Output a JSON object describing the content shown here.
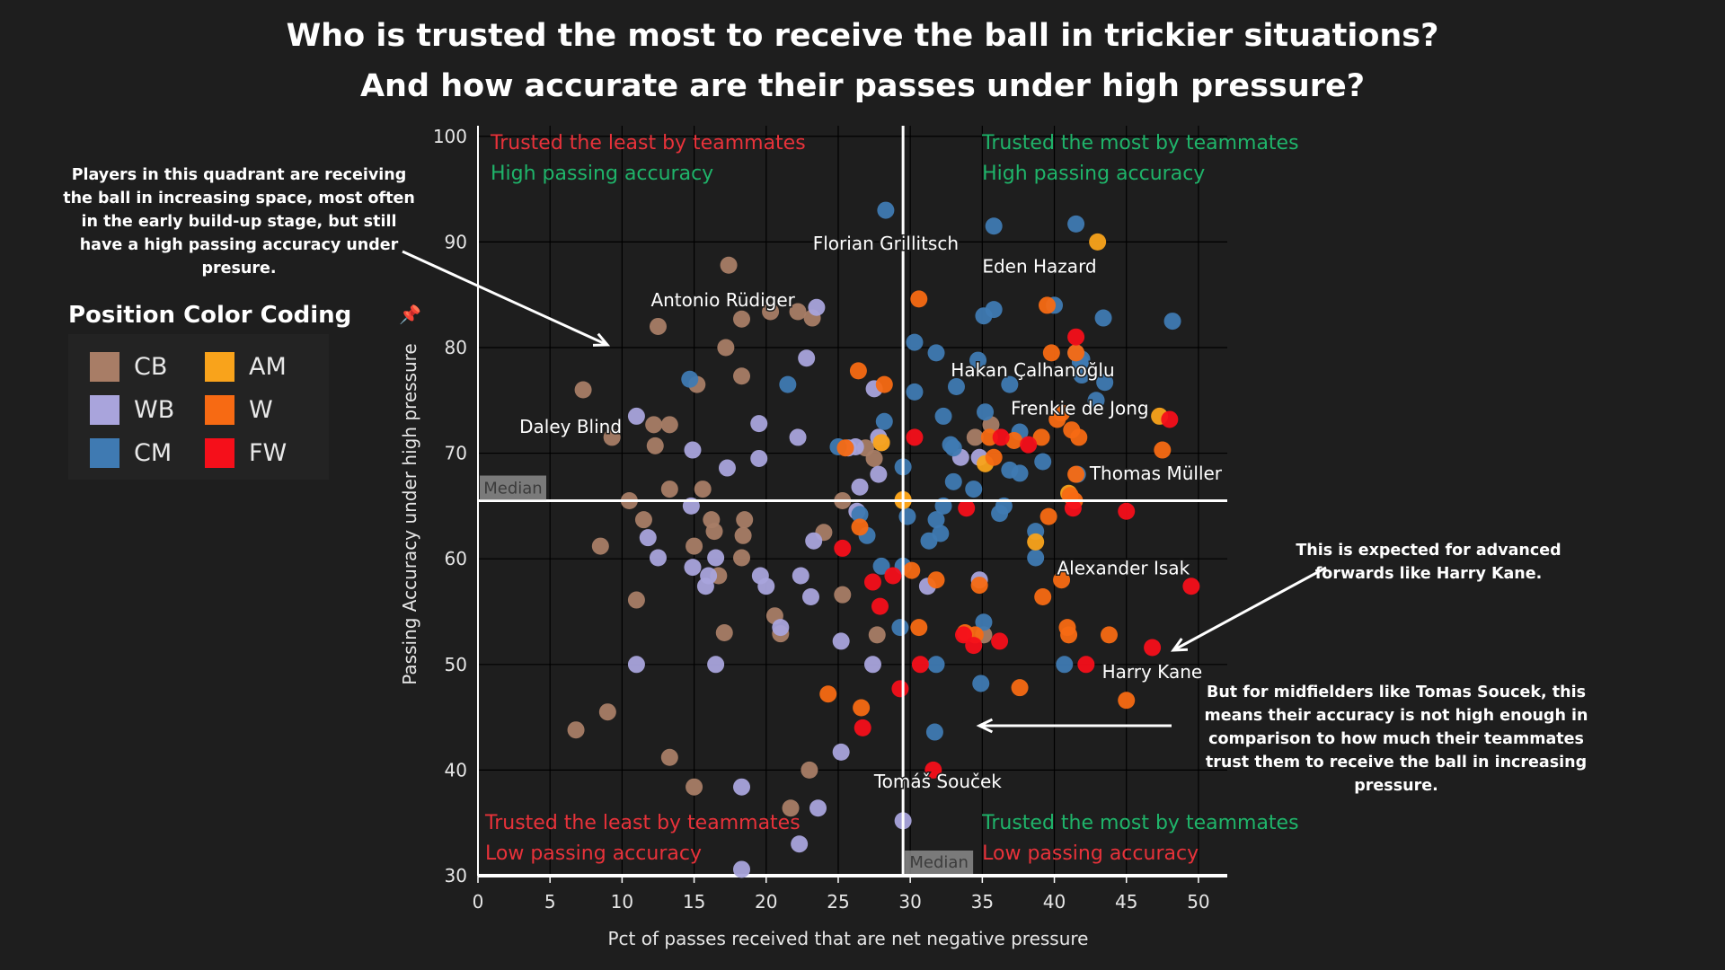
{
  "title": {
    "line1": "Who is trusted the most to receive the ball in trickier situations?",
    "line2": "And how accurate are their passes under high pressure?"
  },
  "annotations": {
    "top_left": "Players in this quadrant are receiving the ball in increasing space, most often in the early build-up stage, but still have a high passing accuracy under presure.",
    "right_forwards": "This is expected for advanced forwards like Harry Kane.",
    "right_midfielders": "But for midfielders like Tomas Soucek, this means their accuracy is not high enough in comparison to how much their teammates trust them to receive the ball in increasing pressure."
  },
  "legend": {
    "title": "Position Color Coding",
    "items": [
      {
        "label": "CB",
        "color": "#a87d66"
      },
      {
        "label": "AM",
        "color": "#f9a31b"
      },
      {
        "label": "WB",
        "color": "#a9a4dc"
      },
      {
        "label": "W",
        "color": "#f76a13"
      },
      {
        "label": "CM",
        "color": "#3f7ab2"
      },
      {
        "label": "FW",
        "color": "#f50f1a"
      }
    ]
  },
  "chart_data": {
    "type": "scatter",
    "xlabel": "Pct of passes received that are net negative pressure",
    "ylabel": "Passing Accuracy under high pressure",
    "xlim": [
      0,
      52
    ],
    "ylim": [
      30,
      101
    ],
    "xticks": [
      0,
      5,
      10,
      15,
      20,
      25,
      30,
      35,
      40,
      45,
      50
    ],
    "yticks": [
      30,
      40,
      50,
      60,
      70,
      80,
      90,
      100
    ],
    "grid": true,
    "median_x": 29.5,
    "median_y": 65.5,
    "median_label": "Median",
    "quadrant_labels": [
      {
        "line1": "Trusted the least by teammates",
        "line2": "High passing accuracy",
        "c1": "#e8323a",
        "c2": "#1fb46a",
        "corner": "top-left"
      },
      {
        "line1": "Trusted the most by teammates",
        "line2": "High passing accuracy",
        "c1": "#1fb46a",
        "c2": "#1fb46a",
        "corner": "top-right"
      },
      {
        "line1": "Trusted the least by teammates",
        "line2": "Low passing accuracy",
        "c1": "#e8323a",
        "c2": "#e8323a",
        "corner": "bottom-left"
      },
      {
        "line1": "Trusted the most by teammates",
        "line2": "Low passing accuracy",
        "c1": "#1fb46a",
        "c2": "#e8323a",
        "corner": "bottom-right"
      }
    ],
    "colors": {
      "CB": "#a87d66",
      "WB": "#a9a4dc",
      "CM": "#3f7ab2",
      "AM": "#f9a31b",
      "W": "#f76a13",
      "FW": "#f50f1a"
    },
    "player_labels": [
      {
        "name": "Florian Grillitsch",
        "x": 28.3,
        "y": 93.0
      },
      {
        "name": "Eden Hazard",
        "x": 43.0,
        "y": 90.0
      },
      {
        "name": "Antonio Rüdiger",
        "x": 17.0,
        "y": 87.5
      },
      {
        "name": "Hakan Çalhanoğlu",
        "x": 38.5,
        "y": 81.0
      },
      {
        "name": "Frenkie de Jong",
        "x": 47.3,
        "y": 73.5
      },
      {
        "name": "Thomas Müller",
        "x": 47.5,
        "y": 70.3
      },
      {
        "name": "Daley Blind",
        "x": 7.3,
        "y": 76.0
      },
      {
        "name": "Alexander Isak",
        "x": 38.5,
        "y": 61.6
      },
      {
        "name": "Harry Kane",
        "x": 46.8,
        "y": 51.6
      },
      {
        "name": "Tomáš Souček",
        "x": 31.6,
        "y": 43.6
      }
    ],
    "points": {
      "CB": [
        [
          7.3,
          76
        ],
        [
          9.3,
          71.5
        ],
        [
          12.2,
          72.7
        ],
        [
          12.3,
          70.7
        ],
        [
          13.3,
          72.7
        ],
        [
          15.2,
          76.5
        ],
        [
          12.5,
          82
        ],
        [
          17.2,
          80
        ],
        [
          18.3,
          82.7
        ],
        [
          20.3,
          83.4
        ],
        [
          17.4,
          87.8
        ],
        [
          22.2,
          83.4
        ],
        [
          23.2,
          82.8
        ],
        [
          18.3,
          77.3
        ],
        [
          15.6,
          66.6
        ],
        [
          13.3,
          66.6
        ],
        [
          10.5,
          65.5
        ],
        [
          11.5,
          63.7
        ],
        [
          16.2,
          63.7
        ],
        [
          18.5,
          63.7
        ],
        [
          16.4,
          62.6
        ],
        [
          18.4,
          62.2
        ],
        [
          24.0,
          62.5
        ],
        [
          25.3,
          65.5
        ],
        [
          27.5,
          69.5
        ],
        [
          26.9,
          70.5
        ],
        [
          28.0,
          71.0
        ],
        [
          34.5,
          71.5
        ],
        [
          35.6,
          72.7
        ],
        [
          8.5,
          61.2
        ],
        [
          15.0,
          61.2
        ],
        [
          16.7,
          58.4
        ],
        [
          18.3,
          60.1
        ],
        [
          11.0,
          56.1
        ],
        [
          20.6,
          54.6
        ],
        [
          17.1,
          53.0
        ],
        [
          21.0,
          52.9
        ],
        [
          25.3,
          56.6
        ],
        [
          27.7,
          52.8
        ],
        [
          35.1,
          52.8
        ],
        [
          6.8,
          43.8
        ],
        [
          9.0,
          45.5
        ],
        [
          13.3,
          41.2
        ],
        [
          15.0,
          38.4
        ],
        [
          23.0,
          40.0
        ],
        [
          21.7,
          36.4
        ]
      ],
      "WB": [
        [
          11.0,
          73.5
        ],
        [
          19.5,
          72.8
        ],
        [
          22.2,
          71.5
        ],
        [
          14.9,
          70.3
        ],
        [
          17.3,
          68.6
        ],
        [
          19.5,
          69.5
        ],
        [
          25.7,
          70.5
        ],
        [
          26.2,
          70.6
        ],
        [
          23.5,
          83.8
        ],
        [
          22.8,
          79.0
        ],
        [
          27.5,
          76.1
        ],
        [
          26.5,
          66.8
        ],
        [
          27.8,
          68.0
        ],
        [
          27.8,
          71.5
        ],
        [
          26.3,
          64.5
        ],
        [
          14.8,
          65.0
        ],
        [
          11.8,
          62.0
        ],
        [
          12.5,
          60.1
        ],
        [
          16.5,
          60.1
        ],
        [
          16.0,
          58.4
        ],
        [
          15.8,
          57.4
        ],
        [
          14.9,
          59.2
        ],
        [
          19.6,
          58.4
        ],
        [
          20.0,
          57.4
        ],
        [
          22.4,
          58.4
        ],
        [
          23.3,
          61.7
        ],
        [
          23.1,
          56.4
        ],
        [
          21.0,
          53.5
        ],
        [
          25.2,
          52.2
        ],
        [
          11.0,
          50.0
        ],
        [
          16.5,
          50.0
        ],
        [
          27.4,
          50.0
        ],
        [
          25.2,
          41.7
        ],
        [
          18.3,
          38.4
        ],
        [
          23.6,
          36.4
        ],
        [
          22.3,
          33.0
        ],
        [
          29.5,
          35.2
        ],
        [
          18.3,
          30.6
        ],
        [
          31.2,
          57.4
        ],
        [
          34.8,
          58.0
        ],
        [
          33.5,
          69.6
        ],
        [
          34.8,
          69.6
        ]
      ],
      "CM": [
        [
          28.3,
          93.0
        ],
        [
          35.8,
          91.5
        ],
        [
          41.5,
          91.7
        ],
        [
          35.1,
          83.0
        ],
        [
          35.8,
          83.6
        ],
        [
          40.0,
          84.0
        ],
        [
          43.4,
          82.8
        ],
        [
          48.2,
          82.5
        ],
        [
          30.3,
          80.5
        ],
        [
          31.8,
          79.5
        ],
        [
          34.7,
          78.8
        ],
        [
          41.5,
          79.5
        ],
        [
          41.9,
          78.9
        ],
        [
          41.9,
          77.4
        ],
        [
          41.8,
          78.6
        ],
        [
          14.7,
          77.0
        ],
        [
          21.5,
          76.5
        ],
        [
          30.3,
          75.8
        ],
        [
          33.2,
          76.3
        ],
        [
          36.9,
          76.5
        ],
        [
          43.5,
          76.7
        ],
        [
          42.9,
          75.0
        ],
        [
          32.3,
          73.5
        ],
        [
          35.2,
          73.9
        ],
        [
          37.6,
          72.0
        ],
        [
          36.9,
          68.4
        ],
        [
          37.6,
          68.1
        ],
        [
          39.2,
          69.2
        ],
        [
          41.6,
          68.0
        ],
        [
          33.0,
          70.5
        ],
        [
          32.8,
          70.8
        ],
        [
          33.0,
          67.3
        ],
        [
          34.4,
          66.6
        ],
        [
          28.2,
          73.0
        ],
        [
          29.5,
          68.7
        ],
        [
          29.8,
          64.0
        ],
        [
          31.8,
          63.7
        ],
        [
          32.3,
          65.0
        ],
        [
          32.1,
          62.4
        ],
        [
          31.3,
          61.7
        ],
        [
          36.2,
          64.3
        ],
        [
          36.5,
          65.0
        ],
        [
          38.7,
          62.6
        ],
        [
          38.7,
          60.1
        ],
        [
          28.0,
          59.3
        ],
        [
          29.5,
          59.3
        ],
        [
          29.3,
          53.5
        ],
        [
          31.8,
          50.0
        ],
        [
          34.9,
          48.2
        ],
        [
          40.7,
          50.0
        ],
        [
          31.7,
          43.6
        ],
        [
          35.1,
          54.0
        ],
        [
          25.0,
          70.6
        ],
        [
          27.0,
          62.2
        ],
        [
          26.5,
          64.2
        ]
      ],
      "AM": [
        [
          43.0,
          90.0
        ],
        [
          47.3,
          73.5
        ],
        [
          38.7,
          61.6
        ],
        [
          28.0,
          71.0
        ],
        [
          35.2,
          69.0
        ],
        [
          29.5,
          65.6
        ],
        [
          29.5,
          65.5
        ],
        [
          41.0,
          66.2
        ]
      ],
      "W": [
        [
          30.6,
          84.6
        ],
        [
          39.5,
          84.0
        ],
        [
          39.8,
          79.5
        ],
        [
          26.4,
          77.8
        ],
        [
          28.2,
          76.5
        ],
        [
          41.5,
          79.5
        ],
        [
          37.2,
          71.2
        ],
        [
          35.5,
          71.5
        ],
        [
          39.1,
          71.5
        ],
        [
          40.2,
          73.2
        ],
        [
          40.5,
          73.8
        ],
        [
          41.2,
          72.2
        ],
        [
          41.7,
          71.5
        ],
        [
          47.5,
          70.3
        ],
        [
          35.8,
          69.6
        ],
        [
          41.5,
          68.0
        ],
        [
          41.4,
          65.5
        ],
        [
          41.1,
          66.0
        ],
        [
          39.6,
          64.0
        ],
        [
          26.5,
          63.0
        ],
        [
          25.5,
          70.5
        ],
        [
          30.1,
          58.9
        ],
        [
          31.8,
          58.0
        ],
        [
          34.8,
          57.5
        ],
        [
          39.2,
          56.4
        ],
        [
          40.5,
          58.0
        ],
        [
          30.6,
          53.5
        ],
        [
          33.8,
          53.0
        ],
        [
          34.5,
          52.8
        ],
        [
          40.9,
          53.5
        ],
        [
          41.0,
          52.8
        ],
        [
          43.8,
          52.8
        ],
        [
          24.3,
          47.2
        ],
        [
          26.6,
          45.9
        ],
        [
          37.6,
          47.8
        ],
        [
          45.0,
          46.6
        ]
      ],
      "FW": [
        [
          41.5,
          81.0
        ],
        [
          48.0,
          73.2
        ],
        [
          30.3,
          71.5
        ],
        [
          36.3,
          71.5
        ],
        [
          38.2,
          70.8
        ],
        [
          41.3,
          64.8
        ],
        [
          45.0,
          64.5
        ],
        [
          33.9,
          64.8
        ],
        [
          25.3,
          61.0
        ],
        [
          27.4,
          57.8
        ],
        [
          28.8,
          58.4
        ],
        [
          27.9,
          55.5
        ],
        [
          33.7,
          52.8
        ],
        [
          34.4,
          51.8
        ],
        [
          36.2,
          52.2
        ],
        [
          46.8,
          51.6
        ],
        [
          49.5,
          57.4
        ],
        [
          30.7,
          50.0
        ],
        [
          42.2,
          50.0
        ],
        [
          26.7,
          44.0
        ],
        [
          29.3,
          47.7
        ],
        [
          31.6,
          40.0
        ]
      ]
    }
  }
}
